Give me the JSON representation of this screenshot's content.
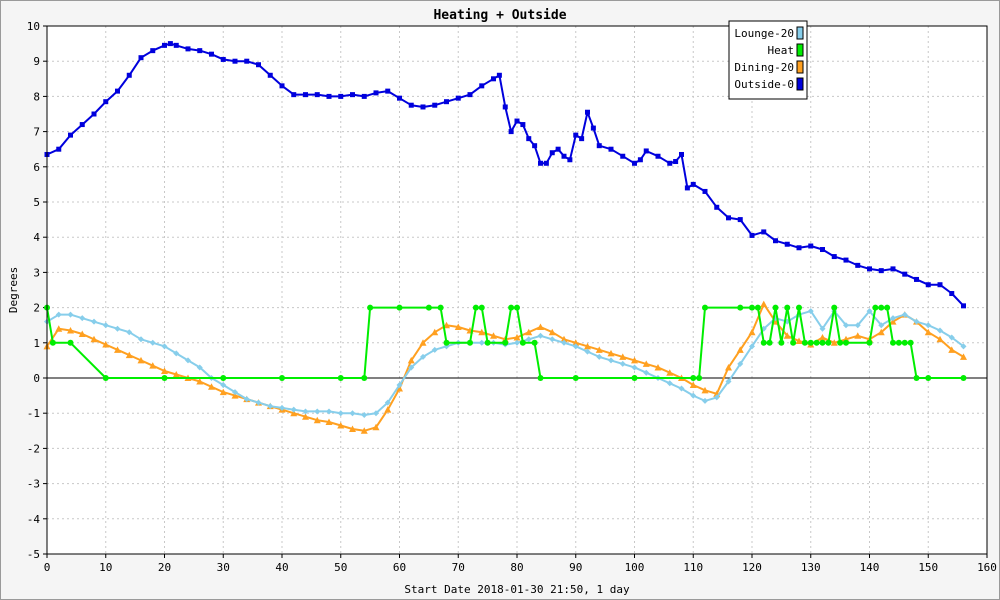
{
  "chart_data": {
    "type": "line",
    "title": "Heating + Outside",
    "xlabel": "Start Date 2018-01-30 21:50, 1 day",
    "ylabel": "Degrees",
    "xlim": [
      0,
      160
    ],
    "ylim": [
      -5,
      10
    ],
    "x_ticks": [
      0,
      10,
      20,
      30,
      40,
      50,
      60,
      70,
      80,
      90,
      100,
      110,
      120,
      130,
      140,
      150,
      160
    ],
    "y_ticks": [
      -5,
      -4,
      -3,
      -2,
      -1,
      0,
      1,
      2,
      3,
      4,
      5,
      6,
      7,
      8,
      9,
      10
    ],
    "grid": true,
    "legend_position": "top-right",
    "series": [
      {
        "name": "Lounge-20",
        "color": "#87ceeb",
        "marker": "diamond",
        "x": [
          0,
          2,
          4,
          6,
          8,
          10,
          12,
          14,
          16,
          18,
          20,
          22,
          24,
          26,
          28,
          30,
          32,
          34,
          36,
          38,
          40,
          42,
          44,
          46,
          48,
          50,
          52,
          54,
          56,
          58,
          60,
          62,
          64,
          66,
          68,
          70,
          72,
          74,
          76,
          78,
          80,
          82,
          84,
          86,
          88,
          90,
          92,
          94,
          96,
          98,
          100,
          102,
          104,
          106,
          108,
          110,
          112,
          114,
          116,
          118,
          120,
          122,
          124,
          126,
          128,
          130,
          132,
          134,
          136,
          138,
          140,
          142,
          144,
          146,
          148,
          150,
          152,
          154,
          156
        ],
        "values": [
          1.6,
          1.8,
          1.8,
          1.7,
          1.6,
          1.5,
          1.4,
          1.3,
          1.1,
          1.0,
          0.9,
          0.7,
          0.5,
          0.3,
          0.0,
          -0.2,
          -0.4,
          -0.6,
          -0.7,
          -0.8,
          -0.85,
          -0.9,
          -0.95,
          -0.95,
          -0.95,
          -1.0,
          -1.0,
          -1.05,
          -1.0,
          -0.7,
          -0.2,
          0.3,
          0.6,
          0.8,
          0.9,
          1.0,
          1.0,
          1.0,
          1.0,
          0.95,
          1.0,
          1.1,
          1.2,
          1.1,
          1.0,
          0.9,
          0.75,
          0.6,
          0.5,
          0.4,
          0.3,
          0.15,
          0.0,
          -0.15,
          -0.3,
          -0.5,
          -0.65,
          -0.55,
          -0.1,
          0.4,
          0.9,
          1.4,
          1.7,
          1.6,
          1.8,
          1.9,
          1.4,
          1.9,
          1.5,
          1.5,
          1.9,
          1.5,
          1.7,
          1.8,
          1.6,
          1.5,
          1.35,
          1.15,
          0.9
        ]
      },
      {
        "name": "Heat",
        "color": "#00ee00",
        "marker": "circle",
        "x": [
          0,
          1,
          4,
          10,
          20,
          30,
          40,
          50,
          54,
          55,
          60,
          65,
          67,
          68,
          72,
          73,
          74,
          75,
          78,
          79,
          80,
          81,
          83,
          84,
          90,
          100,
          110,
          111,
          112,
          118,
          120,
          121,
          122,
          123,
          124,
          125,
          126,
          127,
          128,
          129,
          130,
          131,
          132,
          133,
          134,
          135,
          136,
          140,
          141,
          142,
          143,
          144,
          145,
          146,
          147,
          148,
          150,
          156
        ],
        "values": [
          2,
          1,
          1,
          0,
          0,
          0,
          0,
          0,
          0,
          2,
          2,
          2,
          2,
          1,
          1,
          2,
          2,
          1,
          1,
          2,
          2,
          1,
          1,
          0,
          0,
          0,
          0,
          0,
          2,
          2,
          2,
          2,
          1,
          1,
          2,
          1,
          2,
          1,
          2,
          1,
          1,
          1,
          1,
          1,
          2,
          1,
          1,
          1,
          2,
          2,
          2,
          1,
          1,
          1,
          1,
          0,
          0,
          0
        ]
      },
      {
        "name": "Dining-20",
        "color": "#ffa020",
        "marker": "triangle",
        "x": [
          0,
          2,
          4,
          6,
          8,
          10,
          12,
          14,
          16,
          18,
          20,
          22,
          24,
          26,
          28,
          30,
          32,
          34,
          36,
          38,
          40,
          42,
          44,
          46,
          48,
          50,
          52,
          54,
          56,
          58,
          60,
          62,
          64,
          66,
          68,
          70,
          72,
          74,
          76,
          78,
          80,
          82,
          84,
          86,
          88,
          90,
          92,
          94,
          96,
          98,
          100,
          102,
          104,
          106,
          108,
          110,
          112,
          114,
          116,
          118,
          120,
          122,
          124,
          126,
          128,
          130,
          132,
          134,
          136,
          138,
          140,
          142,
          144,
          146,
          148,
          150,
          152,
          154,
          156
        ],
        "values": [
          0.9,
          1.4,
          1.35,
          1.25,
          1.1,
          0.95,
          0.8,
          0.65,
          0.5,
          0.35,
          0.2,
          0.1,
          0.0,
          -0.1,
          -0.25,
          -0.4,
          -0.5,
          -0.6,
          -0.7,
          -0.8,
          -0.9,
          -1.0,
          -1.1,
          -1.2,
          -1.25,
          -1.35,
          -1.45,
          -1.5,
          -1.4,
          -0.9,
          -0.3,
          0.5,
          1.0,
          1.3,
          1.5,
          1.45,
          1.35,
          1.3,
          1.2,
          1.1,
          1.15,
          1.3,
          1.45,
          1.3,
          1.1,
          1.0,
          0.9,
          0.8,
          0.7,
          0.6,
          0.5,
          0.4,
          0.3,
          0.15,
          0.0,
          -0.2,
          -0.35,
          -0.45,
          0.3,
          0.8,
          1.3,
          2.1,
          1.6,
          1.2,
          1.05,
          0.95,
          1.15,
          1.0,
          1.1,
          1.2,
          1.1,
          1.3,
          1.6,
          1.8,
          1.6,
          1.3,
          1.1,
          0.8,
          0.6
        ]
      },
      {
        "name": "Outside-0",
        "color": "#0000dd",
        "marker": "square",
        "x": [
          0,
          2,
          4,
          6,
          8,
          10,
          12,
          14,
          16,
          18,
          20,
          21,
          22,
          24,
          26,
          28,
          30,
          32,
          34,
          36,
          38,
          40,
          42,
          44,
          46,
          48,
          50,
          52,
          54,
          56,
          58,
          60,
          62,
          64,
          66,
          68,
          70,
          72,
          74,
          76,
          77,
          78,
          79,
          80,
          81,
          82,
          83,
          84,
          85,
          86,
          87,
          88,
          89,
          90,
          91,
          92,
          93,
          94,
          96,
          98,
          100,
          101,
          102,
          104,
          106,
          107,
          108,
          109,
          110,
          112,
          114,
          116,
          118,
          120,
          122,
          124,
          126,
          128,
          130,
          132,
          134,
          136,
          138,
          140,
          142,
          144,
          146,
          148,
          150,
          152,
          154,
          156
        ],
        "values": [
          6.35,
          6.5,
          6.9,
          7.2,
          7.5,
          7.85,
          8.15,
          8.6,
          9.1,
          9.3,
          9.45,
          9.5,
          9.45,
          9.35,
          9.3,
          9.2,
          9.05,
          9.0,
          9.0,
          8.9,
          8.6,
          8.3,
          8.05,
          8.05,
          8.05,
          8.0,
          8.0,
          8.05,
          8.0,
          8.1,
          8.15,
          7.95,
          7.75,
          7.7,
          7.75,
          7.85,
          7.95,
          8.05,
          8.3,
          8.5,
          8.6,
          7.7,
          7.0,
          7.3,
          7.2,
          6.8,
          6.6,
          6.1,
          6.1,
          6.4,
          6.5,
          6.3,
          6.2,
          6.9,
          6.8,
          7.55,
          7.1,
          6.6,
          6.5,
          6.3,
          6.1,
          6.2,
          6.45,
          6.3,
          6.1,
          6.15,
          6.35,
          5.4,
          5.5,
          5.3,
          4.85,
          4.55,
          4.5,
          4.05,
          4.15,
          3.9,
          3.8,
          3.7,
          3.75,
          3.65,
          3.45,
          3.35,
          3.2,
          3.1,
          3.05,
          3.1,
          2.95,
          2.8,
          2.65,
          2.65,
          2.4,
          2.05
        ]
      }
    ]
  }
}
